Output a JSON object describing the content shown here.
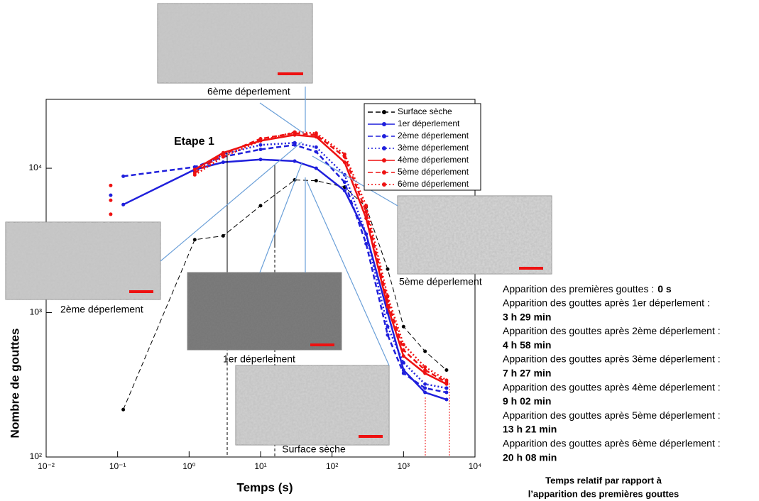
{
  "chart_data": {
    "type": "line",
    "xscale": "log",
    "yscale": "log",
    "xlabel": "Temps (s)",
    "ylabel": "Nombre de gouttes",
    "xlim": [
      0.01,
      10000
    ],
    "ylim": [
      100,
      30000
    ],
    "xticks": [
      {
        "value": 0.01,
        "label": "10⁻²"
      },
      {
        "value": 0.1,
        "label": "10⁻¹"
      },
      {
        "value": 1,
        "label": "10⁰"
      },
      {
        "value": 10,
        "label": "10¹"
      },
      {
        "value": 100,
        "label": "10²"
      },
      {
        "value": 1000,
        "label": "10³"
      },
      {
        "value": 10000,
        "label": "10⁴"
      }
    ],
    "yticks": [
      {
        "value": 100,
        "label": "10²"
      },
      {
        "value": 1000,
        "label": "10³"
      },
      {
        "value": 10000,
        "label": "10⁴"
      }
    ],
    "legend_position": "upper right",
    "x": [
      0.08,
      0.12,
      1.2,
      3,
      10,
      30,
      60,
      150,
      300,
      600,
      1000,
      2000,
      4000
    ],
    "series": [
      {
        "name": "Surface sèche",
        "color": "#000000",
        "linestyle": "dashed",
        "values": [
          null,
          213,
          3200,
          3400,
          5500,
          8300,
          8200,
          7400,
          5400,
          2000,
          800,
          540,
          400
        ]
      },
      {
        "name": "1er déperlement",
        "color": "#1f1fdc",
        "linestyle": "solid",
        "values": [
          null,
          5600,
          9800,
          11000,
          11500,
          11200,
          10000,
          7000,
          3500,
          1000,
          400,
          280,
          250
        ]
      },
      {
        "name": "2ème déperlement",
        "color": "#1f1fdc",
        "linestyle": "dashed",
        "values": [
          null,
          8800,
          10200,
          12000,
          13500,
          14500,
          13000,
          8000,
          3000,
          700,
          380,
          300,
          280
        ]
      },
      {
        "name": "3ème déperlement",
        "color": "#1f1fdc",
        "linestyle": "dotted",
        "values": [
          6500,
          null,
          9500,
          12500,
          14500,
          15000,
          14000,
          9000,
          3500,
          800,
          450,
          320,
          300
        ]
      },
      {
        "name": "4ème déperlement",
        "color": "#ee1111",
        "linestyle": "solid",
        "values": [
          7600,
          null,
          9800,
          12800,
          15500,
          17000,
          16500,
          11000,
          4500,
          1100,
          500,
          380,
          320
        ]
      },
      {
        "name": "5ème déperlement",
        "color": "#ee1111",
        "linestyle": "dashed",
        "values": [
          6000,
          null,
          9300,
          12500,
          16000,
          17500,
          17000,
          12000,
          5000,
          1200,
          550,
          400,
          330
        ]
      },
      {
        "name": "6ème déperlement",
        "color": "#ee1111",
        "linestyle": "dotted",
        "values": [
          4800,
          null,
          9000,
          12000,
          15500,
          17800,
          17500,
          12500,
          5500,
          1300,
          600,
          420,
          340
        ]
      }
    ],
    "annotations": [
      "Etape 1",
      "6ème déperlement",
      "2ème déperlement",
      "1er déperlement",
      "5ème déperlement",
      "Surface sèche"
    ]
  },
  "panel": {
    "events": [
      {
        "label": "Apparition des premières gouttes :",
        "time": "0 s"
      },
      {
        "label": "Apparition des gouttes après 1er déperlement :",
        "time": "3 h 29 min"
      },
      {
        "label": "Apparition des gouttes après 2ème  déperlement :",
        "time": "4 h 58 min"
      },
      {
        "label": "Apparition des gouttes après 3ème déperlement :",
        "time": "7 h 27 min"
      },
      {
        "label": "Apparition des gouttes après 4ème déperlement :",
        "time": "9 h 02 min"
      },
      {
        "label": "Apparition des gouttes après 5ème déperlement :",
        "time": "13 h 21 min"
      },
      {
        "label": "Apparition des gouttes après 6ème déperlement :",
        "time": "20 h 08 min"
      }
    ],
    "footer": [
      "Temps relatif par rapport à",
      "l’apparition des premières gouttes"
    ]
  }
}
